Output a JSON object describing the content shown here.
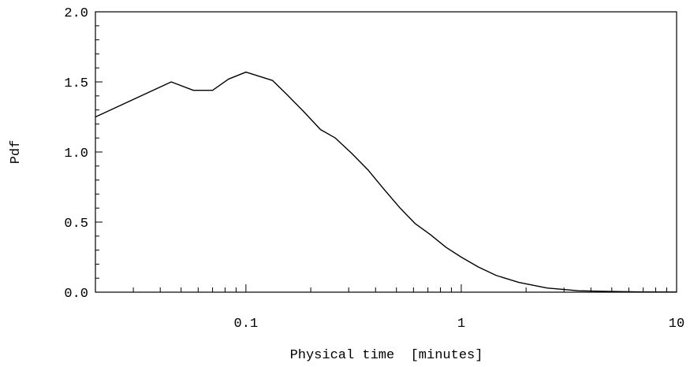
{
  "chart_data": {
    "type": "line",
    "title": "",
    "xlabel": "Physical time  [minutes]",
    "ylabel": "Pdf",
    "x_scale": "log",
    "xlim": [
      0.02,
      10
    ],
    "ylim": [
      0,
      2
    ],
    "x_ticks": [
      {
        "value": 0.1,
        "label": "0.1"
      },
      {
        "value": 1,
        "label": "1"
      },
      {
        "value": 10,
        "label": "10"
      }
    ],
    "y_ticks": [
      {
        "value": 0,
        "label": "0.0"
      },
      {
        "value": 0.5,
        "label": "0.5"
      },
      {
        "value": 1,
        "label": "1.0"
      },
      {
        "value": 1.5,
        "label": "1.5"
      },
      {
        "value": 2,
        "label": "2.0"
      }
    ],
    "grid": false,
    "series": [
      {
        "x": [
          0.02,
          0.045,
          0.057,
          0.07,
          0.083,
          0.1,
          0.133,
          0.155,
          0.185,
          0.222,
          0.26,
          0.31,
          0.37,
          0.44,
          0.52,
          0.61,
          0.72,
          0.85,
          1.0,
          1.2,
          1.45,
          1.85,
          2.5,
          3.5,
          5,
          7,
          10
        ],
        "y": [
          1.25,
          1.5,
          1.44,
          1.44,
          1.52,
          1.57,
          1.51,
          1.41,
          1.29,
          1.16,
          1.1,
          0.99,
          0.87,
          0.73,
          0.6,
          0.49,
          0.41,
          0.32,
          0.25,
          0.18,
          0.12,
          0.07,
          0.03,
          0.01,
          0.005,
          0.002,
          0.001
        ]
      }
    ]
  }
}
